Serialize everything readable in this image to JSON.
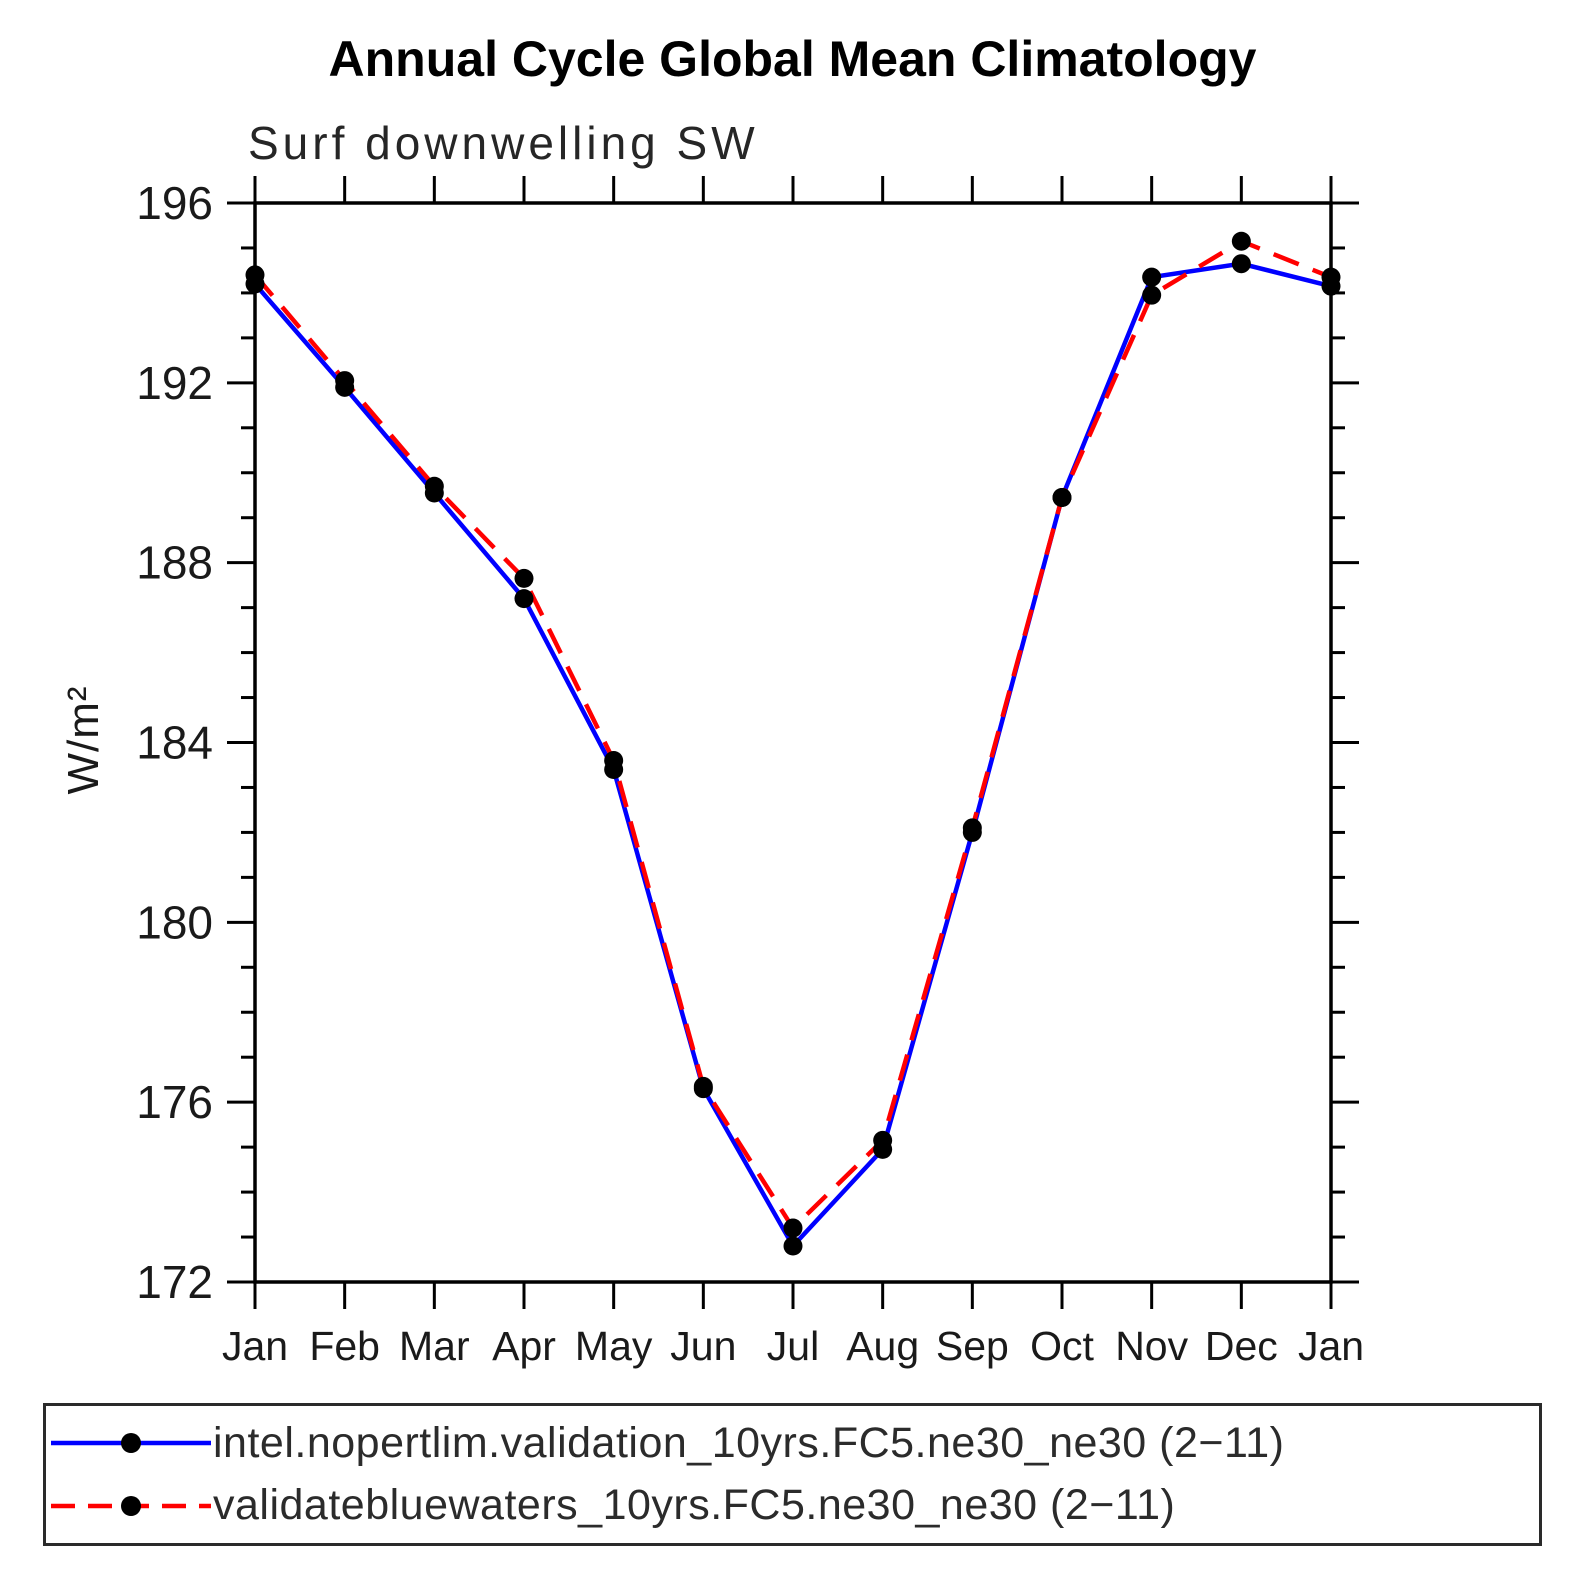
{
  "page": {
    "background": "#ffffff"
  },
  "chart_data": {
    "type": "line",
    "title": "Annual Cycle Global Mean Climatology",
    "subtitle": "Surf downwelling SW",
    "ylabel": "W/m²",
    "categories": [
      "Jan",
      "Feb",
      "Mar",
      "Apr",
      "May",
      "Jun",
      "Jul",
      "Aug",
      "Sep",
      "Oct",
      "Nov",
      "Dec",
      "Jan"
    ],
    "ylim": [
      172,
      196
    ],
    "ytick_major": [
      172,
      176,
      180,
      184,
      188,
      192,
      196
    ],
    "ytick_minor_step": 1,
    "grid": false,
    "legend_position": "bottom",
    "marker_color": "#000000",
    "frame_color": "#000000",
    "series": [
      {
        "name": "intel.nopertlim.validation_10yrs.FC5.ne30_ne30 (2−11)",
        "color": "#0000ff",
        "line_style": "solid",
        "values": [
          194.2,
          191.9,
          189.55,
          187.2,
          183.4,
          176.3,
          172.8,
          174.95,
          182.0,
          189.45,
          194.35,
          194.65,
          194.15
        ]
      },
      {
        "name": "validatebluewaters_10yrs.FC5.ne30_ne30 (2−11)",
        "color": "#ff0000",
        "line_style": "dashed",
        "values": [
          194.4,
          192.05,
          189.7,
          187.65,
          183.6,
          176.35,
          173.2,
          175.15,
          182.1,
          189.45,
          193.95,
          195.15,
          194.35
        ]
      }
    ]
  }
}
